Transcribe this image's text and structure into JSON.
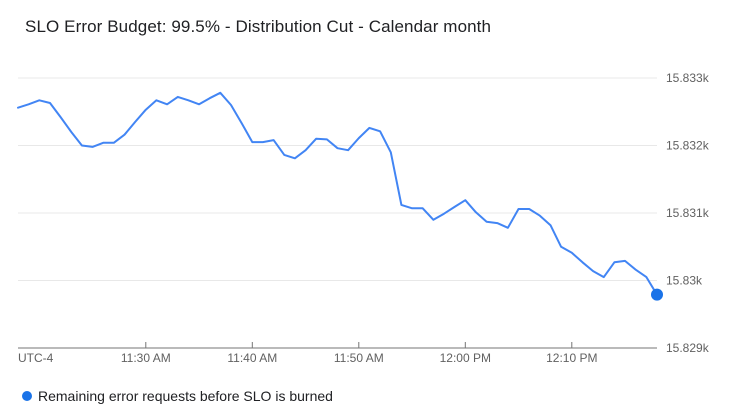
{
  "title": "SLO Error Budget: 99.5% - Distribution Cut - Calendar month",
  "colors": {
    "line": "#4285F4",
    "endpoint_dot": "#1A73E8",
    "gridline": "#E8E8E8",
    "axis_line": "#757575",
    "axis_text": "#616161",
    "title_text": "#202124",
    "legend_text": "#202124",
    "background": "#FFFFFF"
  },
  "legend": {
    "items": [
      {
        "label": "Remaining error requests before SLO is burned",
        "color": "#1A73E8"
      }
    ]
  },
  "x_axis": {
    "timezone_label": "UTC-4",
    "tick_labels": [
      "11:30 AM",
      "11:40 AM",
      "11:50 AM",
      "12:00 PM",
      "12:10 PM"
    ]
  },
  "y_axis": {
    "tick_labels": [
      "15.833k",
      "15.832k",
      "15.831k",
      "15.83k",
      "15.829k"
    ]
  },
  "chart_data": {
    "type": "line",
    "title": "SLO Error Budget: 99.5% - Distribution Cut - Calendar month",
    "xlabel": "",
    "ylabel": "",
    "grid": "horizontal",
    "legend_position": "bottom",
    "ylim": [
      15829,
      15833
    ],
    "y_ticks": [
      {
        "value": 15833,
        "label": "15.833k"
      },
      {
        "value": 15832,
        "label": "15.832k"
      },
      {
        "value": 15831,
        "label": "15.831k"
      },
      {
        "value": 15830,
        "label": "15.83k"
      },
      {
        "value": 15829,
        "label": "15.829k"
      }
    ],
    "x_ticks": [
      "11:30 AM",
      "11:40 AM",
      "11:50 AM",
      "12:00 PM",
      "12:10 PM"
    ],
    "timezone_label": "UTC-4",
    "endpoint_marker": true,
    "x_times": [
      "11:18 AM",
      "11:19 AM",
      "11:20 AM",
      "11:21 AM",
      "11:22 AM",
      "11:23 AM",
      "11:24 AM",
      "11:25 AM",
      "11:26 AM",
      "11:27 AM",
      "11:28 AM",
      "11:29 AM",
      "11:30 AM",
      "11:31 AM",
      "11:32 AM",
      "11:33 AM",
      "11:34 AM",
      "11:35 AM",
      "11:36 AM",
      "11:37 AM",
      "11:38 AM",
      "11:39 AM",
      "11:40 AM",
      "11:41 AM",
      "11:42 AM",
      "11:43 AM",
      "11:44 AM",
      "11:45 AM",
      "11:46 AM",
      "11:47 AM",
      "11:48 AM",
      "11:49 AM",
      "11:50 AM",
      "11:51 AM",
      "11:52 AM",
      "11:53 AM",
      "11:54 AM",
      "11:55 AM",
      "11:56 AM",
      "11:57 AM",
      "11:58 AM",
      "11:59 AM",
      "12:00 PM",
      "12:01 PM",
      "12:02 PM",
      "12:03 PM",
      "12:04 PM",
      "12:05 PM",
      "12:06 PM",
      "12:07 PM",
      "12:08 PM",
      "12:09 PM",
      "12:10 PM",
      "12:11 PM",
      "12:12 PM",
      "12:13 PM",
      "12:14 PM",
      "12:15 PM",
      "12:16 PM",
      "12:17 PM",
      "12:18 PM"
    ],
    "series": [
      {
        "name": "Remaining error requests before SLO is burned",
        "color": "#4285F4",
        "values": [
          15832.56,
          15832.61,
          15832.67,
          15832.63,
          15832.42,
          15832.2,
          15832.0,
          15831.98,
          15832.04,
          15832.04,
          15832.16,
          15832.35,
          15832.53,
          15832.67,
          15832.61,
          15832.72,
          15832.67,
          15832.61,
          15832.7,
          15832.78,
          15832.6,
          15832.33,
          15832.05,
          15832.05,
          15832.08,
          15831.86,
          15831.81,
          15831.93,
          15832.1,
          15832.09,
          15831.96,
          15831.93,
          15832.11,
          15832.26,
          15832.21,
          15831.9,
          15831.12,
          15831.07,
          15831.07,
          15830.9,
          15830.99,
          15831.09,
          15831.19,
          15831.01,
          15830.87,
          15830.85,
          15830.78,
          15831.06,
          15831.06,
          15830.96,
          15830.82,
          15830.5,
          15830.41,
          15830.27,
          15830.14,
          15830.05,
          15830.27,
          15830.29,
          15830.16,
          15830.05,
          15829.79
        ]
      }
    ]
  }
}
